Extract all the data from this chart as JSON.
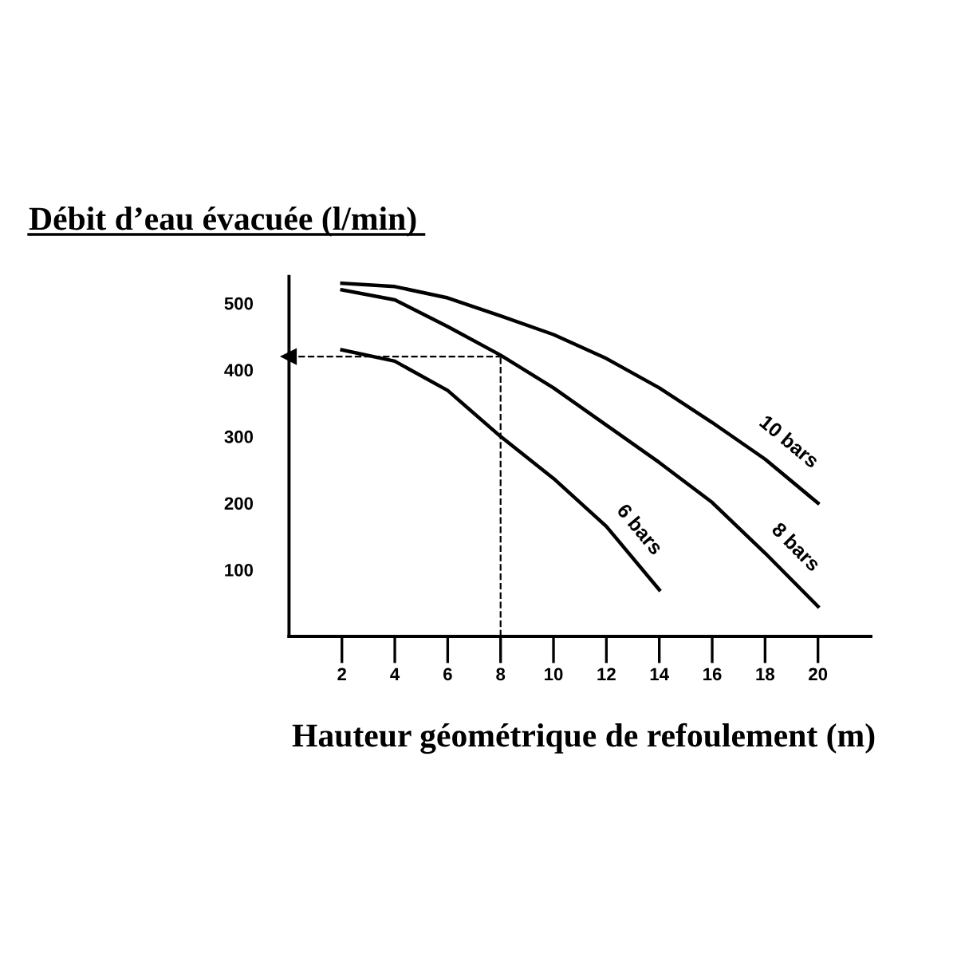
{
  "chart_data": {
    "type": "line",
    "title": "Débit d’eau évacuée (l/min)",
    "xlabel": "Hauteur géométrique de refoulement (m)",
    "x": [
      2,
      4,
      6,
      8,
      10,
      12,
      14,
      16,
      18,
      20
    ],
    "series": [
      {
        "name": "10 bars",
        "color": "#000000",
        "values": [
          530,
          525,
          508,
          481,
          453,
          417,
          373,
          321,
          266,
          200
        ]
      },
      {
        "name": "8 bars",
        "color": "#000000",
        "values": [
          520,
          505,
          465,
          422,
          373,
          317,
          261,
          201,
          125,
          45
        ]
      },
      {
        "name": "6 bars",
        "color": "#000000",
        "values": [
          430,
          413,
          369,
          300,
          237,
          165,
          70,
          null,
          null,
          null
        ]
      }
    ],
    "xlim": [
      0,
      22
    ],
    "ylim": [
      0,
      540
    ],
    "xticks": [
      2,
      4,
      6,
      8,
      10,
      12,
      14,
      16,
      18,
      20
    ],
    "yticks": [
      100,
      200,
      300,
      400,
      500
    ],
    "ref_lines": [
      {
        "axis": "x",
        "value": 8,
        "label": null,
        "line_style": "dashed",
        "color": "#000000"
      },
      {
        "axis": "y",
        "value": 420,
        "label": null,
        "line_style": "dashed",
        "color": "#000000"
      }
    ],
    "grid": false,
    "legend": false,
    "line_style": "solid",
    "marker": "none"
  }
}
